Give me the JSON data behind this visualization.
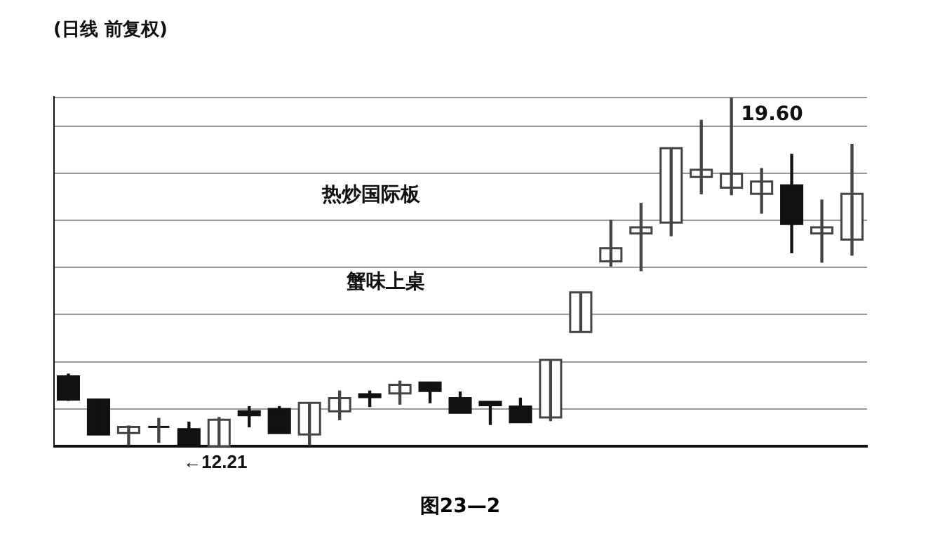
{
  "chart_data": {
    "type": "candlestick",
    "title": "(日线 前复权)",
    "categories": [
      null,
      null,
      null,
      null,
      null,
      null,
      null,
      null,
      null,
      null,
      null,
      null,
      null,
      null,
      null,
      null,
      null,
      null,
      null,
      null,
      null,
      null,
      null,
      null,
      null,
      null,
      null
    ],
    "ohlc": [
      [
        13.69,
        13.74,
        13.18,
        13.2
      ],
      [
        13.2,
        13.2,
        12.46,
        12.46
      ],
      [
        12.49,
        12.64,
        12.24,
        12.62
      ],
      [
        12.62,
        12.8,
        12.29,
        12.62
      ],
      [
        12.57,
        12.72,
        12.21,
        12.21
      ],
      [
        12.21,
        12.82,
        12.21,
        12.77
      ],
      [
        12.95,
        13.05,
        12.62,
        12.87
      ],
      [
        13.0,
        13.05,
        12.49,
        12.49
      ],
      [
        12.46,
        13.13,
        12.24,
        13.13
      ],
      [
        12.95,
        13.38,
        12.77,
        13.23
      ],
      [
        13.31,
        13.38,
        13.05,
        13.25
      ],
      [
        13.33,
        13.59,
        13.1,
        13.51
      ],
      [
        13.56,
        13.56,
        13.13,
        13.38
      ],
      [
        13.23,
        13.36,
        12.92,
        12.92
      ],
      [
        13.15,
        13.15,
        12.67,
        13.08
      ],
      [
        13.05,
        13.23,
        12.72,
        12.72
      ],
      [
        12.82,
        14.04,
        12.75,
        14.04
      ],
      [
        14.63,
        15.47,
        14.63,
        15.47
      ],
      [
        16.13,
        17.0,
        16.03,
        16.41
      ],
      [
        16.72,
        17.36,
        15.93,
        16.85
      ],
      [
        16.95,
        18.53,
        16.67,
        18.53
      ],
      [
        17.92,
        19.12,
        17.56,
        18.07
      ],
      [
        17.69,
        19.6,
        17.54,
        17.99
      ],
      [
        17.56,
        18.1,
        17.15,
        17.82
      ],
      [
        17.74,
        18.4,
        16.31,
        16.92
      ],
      [
        16.72,
        17.43,
        16.11,
        16.85
      ],
      [
        16.59,
        18.61,
        16.26,
        17.56
      ]
    ],
    "grid": "y",
    "annotations": [
      "热炒国际板",
      "蟹味上桌",
      {
        "text": "←12.21",
        "y": 12.21
      },
      "19.60",
      "图23—2"
    ]
  }
}
